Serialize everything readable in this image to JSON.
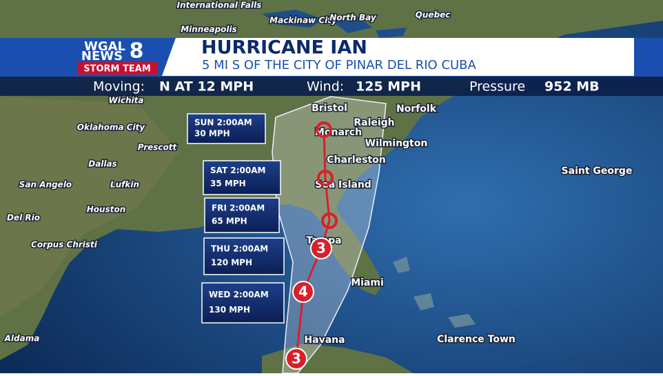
{
  "header": {
    "logo": {
      "line1": "WGAL",
      "line2": "NEWS",
      "number": "8",
      "team": "STORM TEAM"
    },
    "title": "HURRICANE IAN",
    "subtitle": "5 MI S OF THE CITY OF PINAR DEL RIO CUBA"
  },
  "status_bar": {
    "moving_label": "Moving:",
    "moving": "N AT 12 MPH",
    "wind_label": "Wind:",
    "wind": "125 MPH",
    "pressure_label": "Pressure",
    "pressure": "952 MB"
  },
  "forecast": [
    {
      "time": "SUN 2:00AM",
      "wind": "30 MPH"
    },
    {
      "time": "SAT 2:00AM",
      "wind": "35 MPH"
    },
    {
      "time": "FRI 2:00AM",
      "wind": "65 MPH"
    },
    {
      "time": "THU 2:00AM",
      "wind": "120 MPH"
    },
    {
      "time": "WED 2:00AM",
      "wind": "130 MPH"
    }
  ],
  "storm_markers": [
    "3",
    "4",
    "3"
  ],
  "places": [
    "International Falls",
    "Mackinaw City",
    "North Bay",
    "Quebec",
    "Minneapolis",
    "Wichita",
    "Oklahoma City",
    "Prescott",
    "Dallas",
    "San Angelo",
    "Lufkin",
    "Houston",
    "Del Rio",
    "Corpus Christi",
    "Aldama",
    "Bristol",
    "Norfolk",
    "Raleigh",
    "Monarch",
    "Wilmington",
    "Charleston",
    "Sea Island",
    "Tampa",
    "Miami",
    "Havana",
    "Clarence Town",
    "Saint George"
  ]
}
